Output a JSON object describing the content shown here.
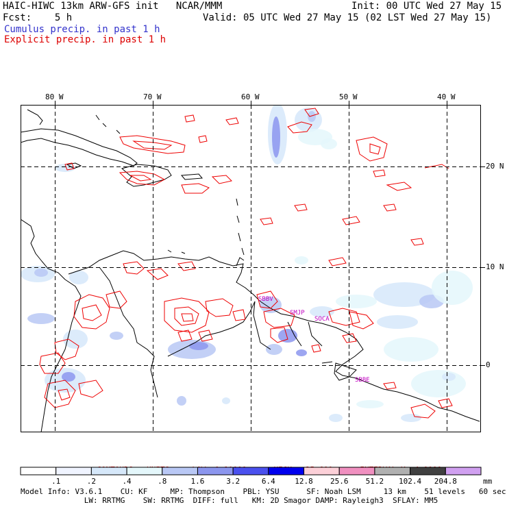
{
  "header": {
    "title": "HAIC-HIWC 13km ARW-GFS init   NCAR/MMM",
    "init": "Init: 00 UTC Wed 27 May 15",
    "fcst": "Fcst:    5 h",
    "valid": "Valid: 05 UTC Wed 27 May 15 (02 LST Wed 27 May 15)",
    "cumulus_label": "Cumulus precip. in past 1 h",
    "explicit_label": "Explicit precip. in past 1 h"
  },
  "colors": {
    "cumulus": "#3333cc",
    "explicit": "#dd0000",
    "contour": "#ee0000",
    "station": "#c000c0"
  },
  "map": {
    "lon_labels": [
      "80 W",
      "70 W",
      "60 W",
      "50 W",
      "40 W"
    ],
    "lat_labels": [
      "20 N",
      "10 N",
      "0"
    ],
    "stations": [
      "SBBV",
      "SMJP",
      "SOCA",
      "SBBE"
    ]
  },
  "contours_line": {
    "prefix": "CONTOURS:",
    "units": "UNITS=mm",
    "low": "LOW= 0.10000",
    "high": "HIGH=  25.600",
    "interval": "INTERVAL=X  4.0000"
  },
  "colorbar": {
    "units": "mm",
    "ticks": [
      ".1",
      ".2",
      ".4",
      ".8",
      "1.6",
      "3.2",
      "6.4",
      "12.8",
      "25.6",
      "51.2",
      "102.4",
      "204.8"
    ],
    "colors": [
      "#ffffff",
      "#f0f4ff",
      "#d6e8fa",
      "#e4f7fb",
      "#b9c8f5",
      "#8c96ee",
      "#4a50ee",
      "#0000ee",
      "#fcd0d8",
      "#f090c0",
      "#b0b0b0",
      "#404040",
      "#d0a0f0"
    ]
  },
  "model_info": {
    "line1": "Model Info: V3.6.1    CU: KF     MP: Thompson    PBL: YSU      SF: Noah LSM     13 km    51 levels   60 sec",
    "line2": "              LW: RRTMG    SW: RRTMG  DIFF: full   KM: 2D Smagor DAMP: Rayleigh3  SFLAY: MM5"
  }
}
